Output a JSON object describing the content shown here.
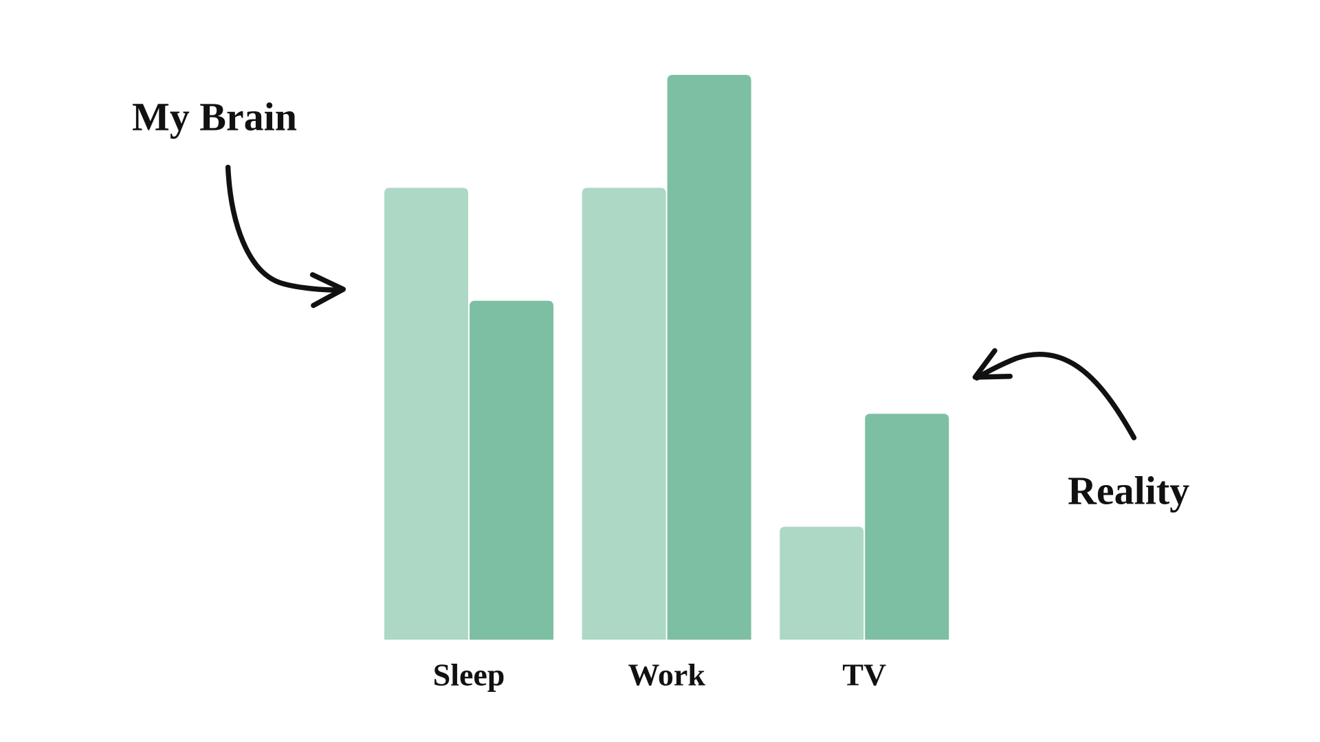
{
  "chart_data": {
    "type": "bar",
    "categories": [
      "Sleep",
      "Work",
      "TV"
    ],
    "series": [
      {
        "name": "My Brain",
        "color": "#add8c6",
        "values": [
          8,
          8,
          2
        ]
      },
      {
        "name": "Reality",
        "color": "#7dbfa2",
        "values": [
          6,
          10,
          4
        ]
      }
    ],
    "ylim": [
      0,
      10
    ]
  }
}
